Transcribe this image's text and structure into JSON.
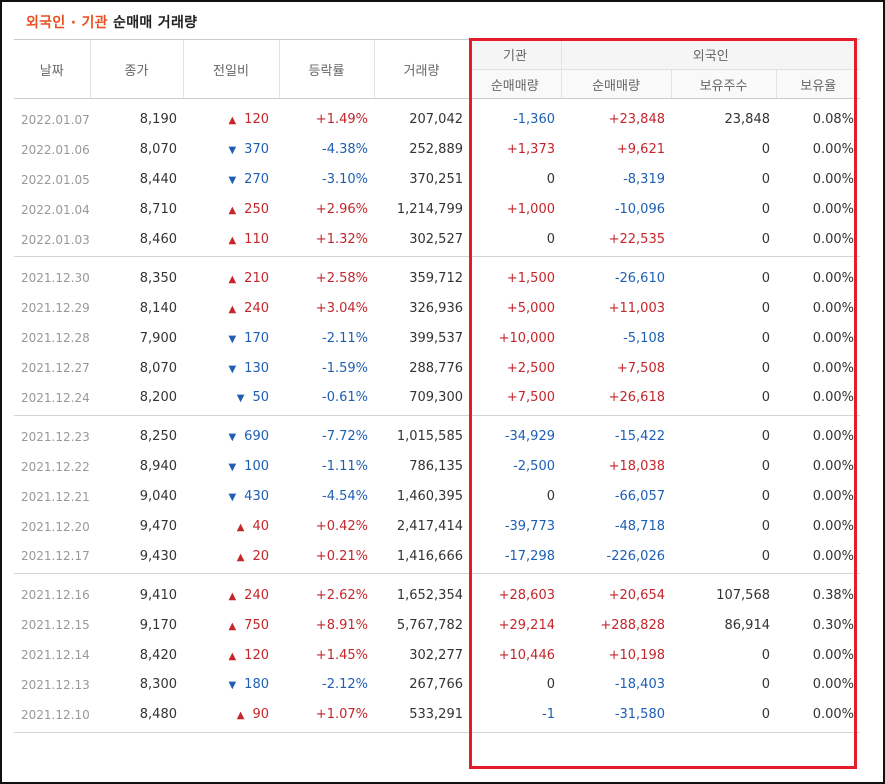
{
  "title": {
    "part1": "외국인 · 기관",
    "part2": " 순매매 거래량"
  },
  "headers": {
    "date": "날짜",
    "close": "종가",
    "change": "전일비",
    "rate": "등락률",
    "volume": "거래량",
    "inst_group": "기관",
    "foreign_group": "외국인",
    "inst_net": "순매매량",
    "foreign_net": "순매매량",
    "holdings": "보유주수",
    "ratio": "보유율"
  },
  "groups": [
    [
      {
        "date": "2022.01.07",
        "close": "8,190",
        "dir": "up",
        "change": "120",
        "rate": "+1.49%",
        "volume": "207,042",
        "inst": "-1,360",
        "foreign": "+23,848",
        "holdings": "23,848",
        "ratio": "0.08%"
      },
      {
        "date": "2022.01.06",
        "close": "8,070",
        "dir": "dn",
        "change": "370",
        "rate": "-4.38%",
        "volume": "252,889",
        "inst": "+1,373",
        "foreign": "+9,621",
        "holdings": "0",
        "ratio": "0.00%"
      },
      {
        "date": "2022.01.05",
        "close": "8,440",
        "dir": "dn",
        "change": "270",
        "rate": "-3.10%",
        "volume": "370,251",
        "inst": "0",
        "foreign": "-8,319",
        "holdings": "0",
        "ratio": "0.00%"
      },
      {
        "date": "2022.01.04",
        "close": "8,710",
        "dir": "up",
        "change": "250",
        "rate": "+2.96%",
        "volume": "1,214,799",
        "inst": "+1,000",
        "foreign": "-10,096",
        "holdings": "0",
        "ratio": "0.00%"
      },
      {
        "date": "2022.01.03",
        "close": "8,460",
        "dir": "up",
        "change": "110",
        "rate": "+1.32%",
        "volume": "302,527",
        "inst": "0",
        "foreign": "+22,535",
        "holdings": "0",
        "ratio": "0.00%"
      }
    ],
    [
      {
        "date": "2021.12.30",
        "close": "8,350",
        "dir": "up",
        "change": "210",
        "rate": "+2.58%",
        "volume": "359,712",
        "inst": "+1,500",
        "foreign": "-26,610",
        "holdings": "0",
        "ratio": "0.00%"
      },
      {
        "date": "2021.12.29",
        "close": "8,140",
        "dir": "up",
        "change": "240",
        "rate": "+3.04%",
        "volume": "326,936",
        "inst": "+5,000",
        "foreign": "+11,003",
        "holdings": "0",
        "ratio": "0.00%"
      },
      {
        "date": "2021.12.28",
        "close": "7,900",
        "dir": "dn",
        "change": "170",
        "rate": "-2.11%",
        "volume": "399,537",
        "inst": "+10,000",
        "foreign": "-5,108",
        "holdings": "0",
        "ratio": "0.00%"
      },
      {
        "date": "2021.12.27",
        "close": "8,070",
        "dir": "dn",
        "change": "130",
        "rate": "-1.59%",
        "volume": "288,776",
        "inst": "+2,500",
        "foreign": "+7,508",
        "holdings": "0",
        "ratio": "0.00%"
      },
      {
        "date": "2021.12.24",
        "close": "8,200",
        "dir": "dn",
        "change": "50",
        "rate": "-0.61%",
        "volume": "709,300",
        "inst": "+7,500",
        "foreign": "+26,618",
        "holdings": "0",
        "ratio": "0.00%"
      }
    ],
    [
      {
        "date": "2021.12.23",
        "close": "8,250",
        "dir": "dn",
        "change": "690",
        "rate": "-7.72%",
        "volume": "1,015,585",
        "inst": "-34,929",
        "foreign": "-15,422",
        "holdings": "0",
        "ratio": "0.00%"
      },
      {
        "date": "2021.12.22",
        "close": "8,940",
        "dir": "dn",
        "change": "100",
        "rate": "-1.11%",
        "volume": "786,135",
        "inst": "-2,500",
        "foreign": "+18,038",
        "holdings": "0",
        "ratio": "0.00%"
      },
      {
        "date": "2021.12.21",
        "close": "9,040",
        "dir": "dn",
        "change": "430",
        "rate": "-4.54%",
        "volume": "1,460,395",
        "inst": "0",
        "foreign": "-66,057",
        "holdings": "0",
        "ratio": "0.00%"
      },
      {
        "date": "2021.12.20",
        "close": "9,470",
        "dir": "up",
        "change": "40",
        "rate": "+0.42%",
        "volume": "2,417,414",
        "inst": "-39,773",
        "foreign": "-48,718",
        "holdings": "0",
        "ratio": "0.00%"
      },
      {
        "date": "2021.12.17",
        "close": "9,430",
        "dir": "up",
        "change": "20",
        "rate": "+0.21%",
        "volume": "1,416,666",
        "inst": "-17,298",
        "foreign": "-226,026",
        "holdings": "0",
        "ratio": "0.00%"
      }
    ],
    [
      {
        "date": "2021.12.16",
        "close": "9,410",
        "dir": "up",
        "change": "240",
        "rate": "+2.62%",
        "volume": "1,652,354",
        "inst": "+28,603",
        "foreign": "+20,654",
        "holdings": "107,568",
        "ratio": "0.38%"
      },
      {
        "date": "2021.12.15",
        "close": "9,170",
        "dir": "up",
        "change": "750",
        "rate": "+8.91%",
        "volume": "5,767,782",
        "inst": "+29,214",
        "foreign": "+288,828",
        "holdings": "86,914",
        "ratio": "0.30%"
      },
      {
        "date": "2021.12.14",
        "close": "8,420",
        "dir": "up",
        "change": "120",
        "rate": "+1.45%",
        "volume": "302,277",
        "inst": "+10,446",
        "foreign": "+10,198",
        "holdings": "0",
        "ratio": "0.00%"
      },
      {
        "date": "2021.12.13",
        "close": "8,300",
        "dir": "dn",
        "change": "180",
        "rate": "-2.12%",
        "volume": "267,766",
        "inst": "0",
        "foreign": "-18,403",
        "holdings": "0",
        "ratio": "0.00%"
      },
      {
        "date": "2021.12.10",
        "close": "8,480",
        "dir": "up",
        "change": "90",
        "rate": "+1.07%",
        "volume": "533,291",
        "inst": "-1",
        "foreign": "-31,580",
        "holdings": "0",
        "ratio": "0.00%"
      }
    ]
  ],
  "icons": {
    "up": "▲",
    "dn": "▼"
  },
  "colors": {
    "up": "#c4262b",
    "down": "#1e5fb4",
    "highlight_box": "#e51c2a",
    "title_accent": "#e8501f"
  }
}
